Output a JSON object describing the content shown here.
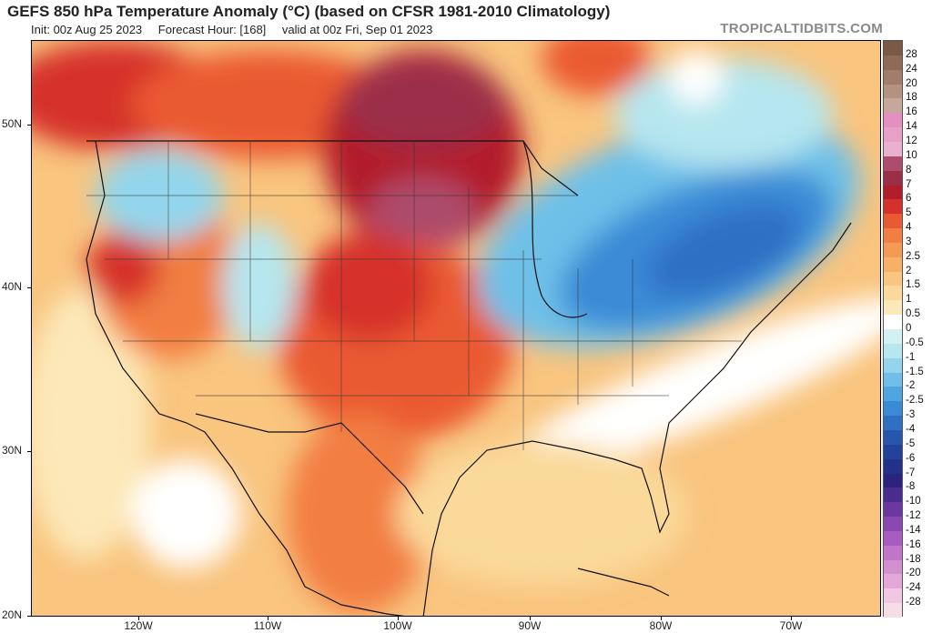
{
  "header": {
    "title": "GEFS 850 hPa Temperature Anomaly (°C) (based on CFSR 1981-2010 Climatology)",
    "init": "Init: 00z Aug 25 2023",
    "forecast_hour": "Forecast Hour: [168]",
    "valid": "valid at 00z Fri, Sep 01 2023",
    "brand": "TROPICALTIDBITS.COM"
  },
  "map": {
    "lat_labels": [
      "50N",
      "40N",
      "30N",
      "20N"
    ],
    "lon_labels": [
      "120W",
      "110W",
      "100W",
      "90W",
      "80W",
      "70W"
    ]
  },
  "colorbar": {
    "labels": [
      "28",
      "24",
      "20",
      "18",
      "16",
      "14",
      "12",
      "10",
      "8",
      "7",
      "6",
      "5",
      "4",
      "3",
      "2.5",
      "2",
      "1.5",
      "1",
      "0.5",
      "0",
      "-0.5",
      "-1",
      "-1.5",
      "-2",
      "-2.5",
      "-3",
      "-4",
      "-5",
      "-6",
      "-7",
      "-8",
      "-10",
      "-12",
      "-14",
      "-16",
      "-18",
      "-20",
      "-24",
      "-28"
    ],
    "colors": [
      "#7a5a44",
      "#8d6b55",
      "#a07e69",
      "#b3927f",
      "#c6a89a",
      "#e58fc0",
      "#e8a0c8",
      "#eab0cf",
      "#ad4c6c",
      "#9b2f48",
      "#b21d2c",
      "#d6302c",
      "#ea5a32",
      "#f27e42",
      "#f59a52",
      "#f7b065",
      "#f9c57f",
      "#fad99a",
      "#fce8b8",
      "#ffffff",
      "#d3f1f3",
      "#b6e6ef",
      "#93d5ec",
      "#6ec0e8",
      "#4ea6e0",
      "#3a8bd6",
      "#2f6fc4",
      "#2657ad",
      "#23429a",
      "#22318a",
      "#2b237e",
      "#4a2c8e",
      "#6c37a0",
      "#8a48b2",
      "#a85cc2",
      "#c274c8",
      "#d48fcf",
      "#e2a8d8",
      "#f0c8e2",
      "#f7dde8"
    ]
  }
}
